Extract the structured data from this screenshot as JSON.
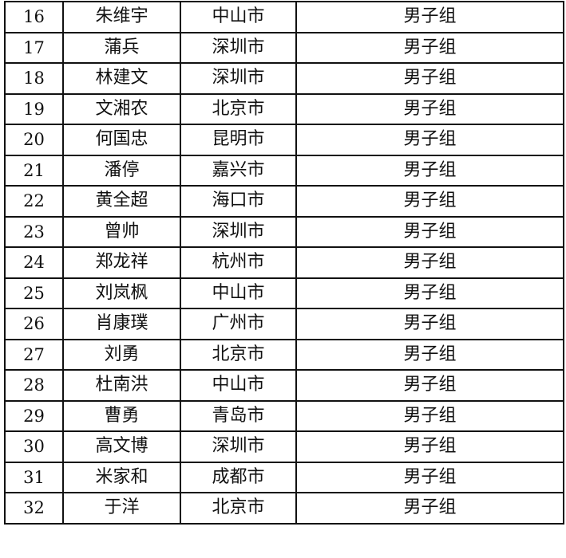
{
  "rows": [
    {
      "no": "16",
      "name": "朱维宇",
      "city": "中山市",
      "group": "男子组"
    },
    {
      "no": "17",
      "name": "蒲兵",
      "city": "深圳市",
      "group": "男子组"
    },
    {
      "no": "18",
      "name": "林建文",
      "city": "深圳市",
      "group": "男子组"
    },
    {
      "no": "19",
      "name": "文湘农",
      "city": "北京市",
      "group": "男子组"
    },
    {
      "no": "20",
      "name": "何国忠",
      "city": "昆明市",
      "group": "男子组"
    },
    {
      "no": "21",
      "name": "潘停",
      "city": "嘉兴市",
      "group": "男子组"
    },
    {
      "no": "22",
      "name": "黄全超",
      "city": "海口市",
      "group": "男子组"
    },
    {
      "no": "23",
      "name": "曾帅",
      "city": "深圳市",
      "group": "男子组"
    },
    {
      "no": "24",
      "name": "郑龙祥",
      "city": "杭州市",
      "group": "男子组"
    },
    {
      "no": "25",
      "name": "刘岚枫",
      "city": "中山市",
      "group": "男子组"
    },
    {
      "no": "26",
      "name": "肖康璞",
      "city": "广州市",
      "group": "男子组"
    },
    {
      "no": "27",
      "name": "刘勇",
      "city": "北京市",
      "group": "男子组"
    },
    {
      "no": "28",
      "name": "杜南洪",
      "city": "中山市",
      "group": "男子组"
    },
    {
      "no": "29",
      "name": "曹勇",
      "city": "青岛市",
      "group": "男子组"
    },
    {
      "no": "30",
      "name": "高文博",
      "city": "深圳市",
      "group": "男子组"
    },
    {
      "no": "31",
      "name": "米家和",
      "city": "成都市",
      "group": "男子组"
    },
    {
      "no": "32",
      "name": "于洋",
      "city": "北京市",
      "group": "男子组"
    }
  ]
}
